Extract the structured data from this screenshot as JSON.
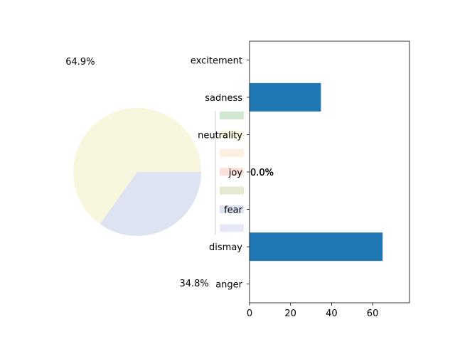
{
  "chart_data": [
    {
      "type": "pie",
      "slices": [
        {
          "value": 64.9,
          "label": "64.9%",
          "color": "#f8f6dc"
        },
        {
          "value": 34.8,
          "label": "34.8%",
          "color": "#dde3f1"
        },
        {
          "value": 0.0,
          "label": "0.0%",
          "color": "#cfe8cf"
        },
        {
          "value": 0.0,
          "label": "0.0%",
          "color": "#fbefdf"
        },
        {
          "value": 0.0,
          "label": "0.0%",
          "color": "#fbe1d9"
        },
        {
          "value": 0.0,
          "label": "0.0%",
          "color": "#e3ead0"
        },
        {
          "value": 0.0,
          "label": "0.0%",
          "color": "#e6e8f8"
        }
      ],
      "legend_swatches": [
        "#cfe8cf",
        "#f8f6dc",
        "#fbefdf",
        "#fbe1d9",
        "#e3ead0",
        "#dde3f1",
        "#e6e8f8"
      ]
    },
    {
      "type": "bar",
      "orientation": "horizontal",
      "categories": [
        "excitement",
        "sadness",
        "neutrality",
        "joy",
        "fear",
        "dismay",
        "anger"
      ],
      "values": [
        0,
        34.8,
        0,
        0,
        0,
        64.9,
        0
      ],
      "xlim": [
        0,
        78
      ],
      "xticks": [
        0,
        20,
        40,
        60
      ],
      "bar_color": "#1f77b4"
    }
  ]
}
